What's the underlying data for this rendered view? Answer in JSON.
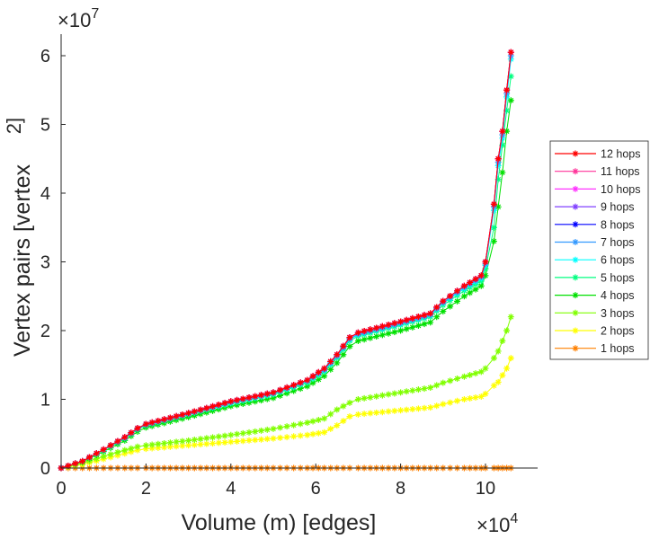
{
  "chart_data": {
    "type": "line",
    "title": "",
    "xlabel": "Volume (m) [edges]",
    "ylabel": "Vertex pairs [vertex",
    "ylabel_super": "2]",
    "x_multiplier": "×10",
    "x_multiplier_exp": "4",
    "y_multiplier": "×10",
    "y_multiplier_exp": "7",
    "xlim": [
      0,
      11.2
    ],
    "ylim": [
      0,
      6.35
    ],
    "x_ticks": [
      "0",
      "2",
      "4",
      "6",
      "8",
      "10"
    ],
    "y_ticks": [
      "0",
      "1",
      "2",
      "3",
      "4",
      "5",
      "6"
    ],
    "legend_position": "outside-right",
    "x": [
      0,
      0.5,
      1,
      1.5,
      1.8,
      2,
      3,
      4,
      5,
      5.8,
      6.2,
      6.5,
      6.8,
      7,
      8,
      8.7,
      9,
      9.5,
      9.9,
      10.0,
      10.2,
      10.3,
      10.4,
      10.5,
      10.6
    ],
    "series": [
      {
        "name": "12 hops",
        "color": "#ff0000",
        "values": [
          0,
          0.1,
          0.27,
          0.45,
          0.58,
          0.64,
          0.8,
          0.97,
          1.1,
          1.28,
          1.45,
          1.65,
          1.9,
          1.97,
          2.13,
          2.25,
          2.43,
          2.65,
          2.8,
          3.0,
          3.84,
          4.5,
          4.9,
          5.5,
          6.05
        ]
      },
      {
        "name": "11 hops",
        "color": "#ff3399",
        "values": [
          0,
          0.1,
          0.27,
          0.45,
          0.58,
          0.64,
          0.8,
          0.97,
          1.1,
          1.28,
          1.45,
          1.65,
          1.9,
          1.97,
          2.13,
          2.25,
          2.43,
          2.65,
          2.8,
          3.0,
          3.84,
          4.5,
          4.9,
          5.5,
          6.05
        ]
      },
      {
        "name": "10 hops",
        "color": "#ff33ff",
        "values": [
          0,
          0.1,
          0.27,
          0.45,
          0.58,
          0.64,
          0.8,
          0.97,
          1.1,
          1.28,
          1.45,
          1.65,
          1.9,
          1.97,
          2.13,
          2.25,
          2.43,
          2.65,
          2.8,
          3.0,
          3.84,
          4.5,
          4.9,
          5.5,
          6.05
        ]
      },
      {
        "name": "9 hops",
        "color": "#8040ff",
        "values": [
          0,
          0.1,
          0.27,
          0.45,
          0.58,
          0.64,
          0.8,
          0.97,
          1.1,
          1.28,
          1.45,
          1.65,
          1.9,
          1.97,
          2.13,
          2.25,
          2.43,
          2.65,
          2.8,
          3.0,
          3.84,
          4.5,
          4.9,
          5.5,
          6.05
        ]
      },
      {
        "name": "8 hops",
        "color": "#0000ff",
        "values": [
          0,
          0.1,
          0.27,
          0.45,
          0.58,
          0.64,
          0.8,
          0.97,
          1.1,
          1.28,
          1.45,
          1.65,
          1.9,
          1.97,
          2.13,
          2.25,
          2.43,
          2.65,
          2.8,
          3.0,
          3.84,
          4.5,
          4.9,
          5.5,
          6.05
        ]
      },
      {
        "name": "7 hops",
        "color": "#3399ff",
        "values": [
          0,
          0.1,
          0.27,
          0.44,
          0.57,
          0.63,
          0.79,
          0.96,
          1.09,
          1.27,
          1.43,
          1.63,
          1.88,
          1.95,
          2.11,
          2.23,
          2.41,
          2.63,
          2.78,
          2.97,
          3.8,
          4.45,
          4.85,
          5.45,
          6.0
        ]
      },
      {
        "name": "6 hops",
        "color": "#00ffff",
        "values": [
          0,
          0.1,
          0.26,
          0.44,
          0.57,
          0.63,
          0.79,
          0.95,
          1.08,
          1.26,
          1.42,
          1.62,
          1.87,
          1.94,
          2.1,
          2.22,
          2.4,
          2.61,
          2.76,
          2.95,
          3.75,
          4.4,
          4.8,
          5.4,
          5.95
        ]
      },
      {
        "name": "5 hops",
        "color": "#00ff80",
        "values": [
          0,
          0.1,
          0.26,
          0.43,
          0.56,
          0.62,
          0.78,
          0.94,
          1.07,
          1.24,
          1.4,
          1.6,
          1.85,
          1.92,
          2.08,
          2.2,
          2.37,
          2.58,
          2.72,
          2.9,
          3.5,
          4.2,
          4.7,
          5.2,
          5.7
        ]
      },
      {
        "name": "4 hops",
        "color": "#00e000",
        "values": [
          0,
          0.09,
          0.24,
          0.4,
          0.53,
          0.59,
          0.74,
          0.9,
          1.02,
          1.19,
          1.34,
          1.53,
          1.77,
          1.85,
          2.0,
          2.12,
          2.28,
          2.5,
          2.65,
          2.8,
          3.3,
          3.8,
          4.3,
          4.9,
          5.35
        ]
      },
      {
        "name": "3 hops",
        "color": "#80ff00",
        "values": [
          0,
          0.07,
          0.17,
          0.26,
          0.31,
          0.33,
          0.4,
          0.48,
          0.57,
          0.66,
          0.72,
          0.85,
          0.95,
          1.0,
          1.1,
          1.17,
          1.24,
          1.33,
          1.4,
          1.45,
          1.6,
          1.7,
          1.85,
          2.0,
          2.2
        ]
      },
      {
        "name": "2 hops",
        "color": "#ffff00",
        "values": [
          0,
          0.05,
          0.13,
          0.21,
          0.26,
          0.28,
          0.33,
          0.38,
          0.43,
          0.48,
          0.52,
          0.62,
          0.75,
          0.78,
          0.84,
          0.88,
          0.93,
          1.0,
          1.04,
          1.08,
          1.2,
          1.25,
          1.35,
          1.45,
          1.6
        ]
      },
      {
        "name": "1 hops",
        "color": "#ff8000",
        "values": [
          0,
          0,
          0,
          0,
          0,
          0,
          0,
          0,
          0,
          0,
          0,
          0,
          0,
          0,
          0,
          0,
          0,
          0,
          0,
          0,
          0,
          0,
          0,
          0,
          0
        ]
      }
    ]
  }
}
